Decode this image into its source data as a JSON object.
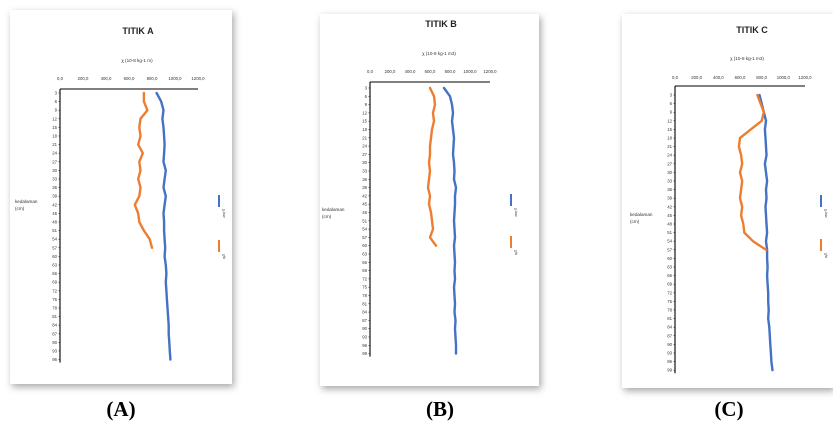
{
  "captions": [
    "(A)",
    "(B)",
    "(C)"
  ],
  "chart_data": [
    {
      "type": "line",
      "title": "TITIK A",
      "xlabel": "χ (10-8 kg-1 m)",
      "ylabel_lines": [
        "kedalaman",
        "(cm)"
      ],
      "xticks": [
        "0,0",
        "200,0",
        "400,0",
        "600,0",
        "800,0",
        "1000,0",
        "1200,0"
      ],
      "xlim": [
        0,
        1200
      ],
      "y": [
        3,
        6,
        9,
        12,
        15,
        18,
        21,
        24,
        27,
        30,
        33,
        36,
        39,
        42,
        45,
        48,
        51,
        54,
        57,
        60,
        63,
        66,
        69,
        72,
        75,
        78,
        81,
        84,
        87,
        90,
        93,
        96
      ],
      "series": [
        {
          "name": "χ-low",
          "color": "#4472C4",
          "values": [
            840,
            880,
            900,
            890,
            900,
            905,
            910,
            905,
            900,
            920,
            910,
            900,
            920,
            910,
            900,
            905,
            905,
            910,
            915,
            910,
            920,
            925,
            920,
            925,
            930,
            935,
            940,
            945,
            945,
            950,
            955,
            960
          ]
        },
        {
          "name": "χfd",
          "color": "#ED7D31",
          "values": [
            730,
            730,
            760,
            700,
            690,
            700,
            680,
            720,
            690,
            700,
            680,
            700,
            690,
            650,
            680,
            690,
            730,
            780,
            800
          ]
        }
      ]
    },
    {
      "type": "line",
      "title": "TITIK B",
      "xlabel": "χ (10-8 kg-1 m3)",
      "ylabel_lines": [
        "kedalaman",
        "(cm)"
      ],
      "xticks": [
        "0,0",
        "200,0",
        "400,0",
        "600,0",
        "800,0",
        "1000,0",
        "1200,0"
      ],
      "xlim": [
        0,
        1200
      ],
      "y": [
        3,
        6,
        9,
        12,
        15,
        18,
        21,
        24,
        27,
        30,
        33,
        36,
        39,
        42,
        45,
        48,
        51,
        54,
        57,
        60,
        63,
        66,
        69,
        72,
        75,
        78,
        81,
        84,
        87,
        90,
        93,
        96,
        99
      ],
      "series": [
        {
          "name": "χ-low",
          "color": "#4472C4",
          "values": [
            740,
            800,
            820,
            830,
            820,
            830,
            840,
            835,
            830,
            840,
            845,
            840,
            860,
            850,
            850,
            845,
            840,
            845,
            850,
            840,
            845,
            850,
            845,
            850,
            840,
            845,
            850,
            845,
            855,
            850,
            855,
            860,
            860
          ]
        },
        {
          "name": "χfd",
          "color": "#ED7D31",
          "values": [
            600,
            640,
            650,
            630,
            640,
            620,
            610,
            600,
            600,
            590,
            600,
            590,
            580,
            600,
            590,
            610,
            620,
            630,
            600,
            660
          ]
        }
      ]
    },
    {
      "type": "line",
      "title": "TITIK C",
      "xlabel": "χ (10-8 kg-1 m3)",
      "ylabel_lines": [
        "kedalaman",
        "(cm)"
      ],
      "xticks": [
        "0,0",
        "200,0",
        "400,0",
        "600,0",
        "800,0",
        "1000,0",
        "1200,0"
      ],
      "xlim": [
        0,
        1200
      ],
      "y": [
        3,
        6,
        9,
        12,
        15,
        18,
        21,
        24,
        27,
        30,
        33,
        36,
        39,
        42,
        45,
        48,
        51,
        54,
        57,
        60,
        63,
        66,
        69,
        72,
        75,
        78,
        81,
        84,
        87,
        90,
        93,
        96,
        99
      ],
      "series": [
        {
          "name": "χ-low",
          "color": "#4472C4",
          "values": [
            780,
            800,
            820,
            840,
            830,
            835,
            840,
            845,
            830,
            840,
            850,
            840,
            845,
            835,
            840,
            845,
            850,
            840,
            850,
            850,
            855,
            850,
            855,
            860,
            860,
            865,
            860,
            870,
            875,
            880,
            885,
            890,
            900
          ]
        },
        {
          "name": "χfd",
          "color": "#ED7D31",
          "values": [
            760,
            790,
            820,
            800,
            700,
            600,
            590,
            610,
            620,
            600,
            620,
            610,
            600,
            620,
            610,
            630,
            640,
            720,
            840
          ]
        }
      ]
    }
  ]
}
